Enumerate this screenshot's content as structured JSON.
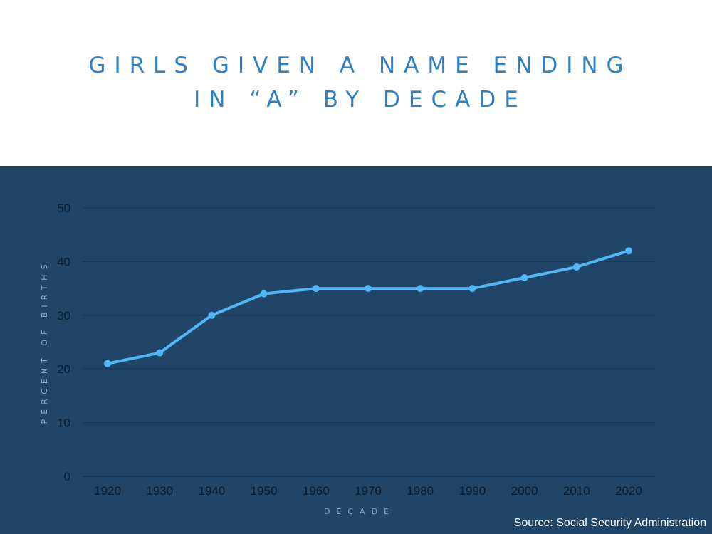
{
  "header": {
    "title_line1": "Girls given a name ending",
    "title_line2": "in “a” by decade"
  },
  "source": "Source: Social Security Administration",
  "colors": {
    "title": "#2f7fc4",
    "panel_background": "#214469",
    "line": "#4fb8f5",
    "gridline": "#1a3655",
    "axis_label": "#8fa6bd"
  },
  "chart_data": {
    "type": "line",
    "title": "Girls given a name ending in “a” by decade",
    "xlabel": "DECADE",
    "ylabel": "PERCENT OF BIRTHS",
    "categories": [
      "1920",
      "1930",
      "1940",
      "1950",
      "1960",
      "1970",
      "1980",
      "1990",
      "2000",
      "2010",
      "2020"
    ],
    "values": [
      21,
      23,
      30,
      34,
      35,
      35,
      35,
      35,
      37,
      39,
      42
    ],
    "ylim": [
      0,
      50
    ],
    "yticks": [
      0,
      10,
      20,
      30,
      40,
      50
    ],
    "grid": true,
    "legend": "none"
  }
}
